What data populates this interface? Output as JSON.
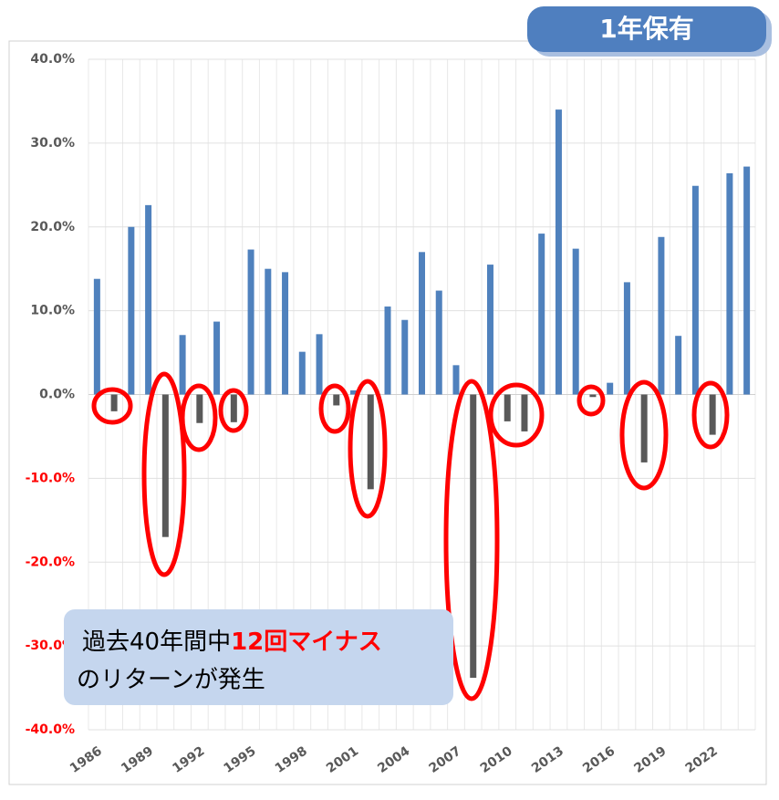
{
  "chart_data": {
    "type": "bar",
    "badge": "1年保有",
    "annotation": {
      "line1_normal": "過去40年間中",
      "line1_highlight": "12回マイナス",
      "line2": "のリターンが発生"
    },
    "categories": [
      "1986",
      null,
      null,
      "1989",
      null,
      null,
      "1992",
      null,
      null,
      "1995",
      null,
      null,
      "1998",
      null,
      null,
      "2001",
      null,
      null,
      "2004",
      null,
      null,
      "2007",
      null,
      null,
      "2010",
      null,
      null,
      "2013",
      null,
      null,
      "2016",
      null,
      null,
      "2019",
      null,
      null,
      "2022",
      null,
      null
    ],
    "values": [
      13.8,
      -2.0,
      20.0,
      22.6,
      -17.0,
      7.1,
      -3.4,
      8.7,
      -3.3,
      17.3,
      15.0,
      14.6,
      5.1,
      7.2,
      -1.3,
      0.5,
      -11.3,
      10.5,
      8.9,
      17.0,
      12.4,
      3.5,
      -33.8,
      15.5,
      -3.2,
      -4.4,
      19.2,
      34.0,
      17.4,
      -0.3,
      1.4,
      13.4,
      -8.1,
      18.8,
      7.0,
      24.9,
      -4.8,
      26.4,
      27.2
    ],
    "color": "#4f81bd",
    "negative_color": "#595959",
    "ylim": [
      -40,
      40
    ],
    "yticks": [
      {
        "value": -40,
        "label": "-40.0%"
      },
      {
        "value": -30,
        "label": "-30.0%"
      },
      {
        "value": -20,
        "label": "-20.0%"
      },
      {
        "value": -10,
        "label": "-10.0%"
      },
      {
        "value": 0,
        "label": "0.0%"
      },
      {
        "value": 10,
        "label": "10.0%"
      },
      {
        "value": 20,
        "label": "20.0%"
      },
      {
        "value": 30,
        "label": "30.0%"
      },
      {
        "value": 40,
        "label": "40.0%"
      }
    ],
    "grid": true
  }
}
